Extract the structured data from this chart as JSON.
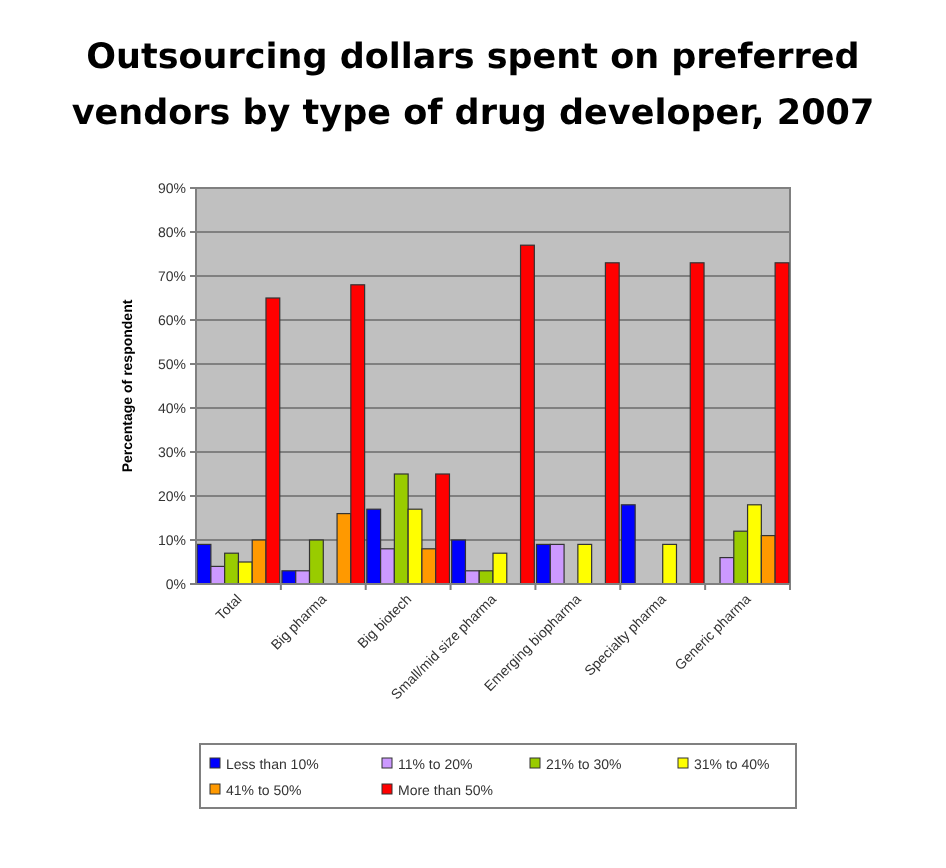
{
  "chart_data": {
    "type": "bar",
    "title": "Outsourcing dollars spent on preferred vendors by type of drug developer, 2007",
    "ylabel": "Percentage of respondent",
    "categories": [
      "Total",
      "Big pharma",
      "Big biotech",
      "Small/mid size pharma",
      "Emerging biopharma",
      "Specialty pharma",
      "Generic pharma"
    ],
    "series": [
      {
        "name": "Less than 10%",
        "color": "#0000ff",
        "values": [
          9,
          3,
          17,
          10,
          9,
          18,
          0
        ]
      },
      {
        "name": "11% to 20%",
        "color": "#cc99ff",
        "values": [
          4,
          3,
          8,
          3,
          9,
          0,
          6
        ]
      },
      {
        "name": "21% to 30%",
        "color": "#99cc00",
        "values": [
          7,
          10,
          25,
          3,
          0,
          0,
          12
        ]
      },
      {
        "name": "31% to 40%",
        "color": "#ffff00",
        "values": [
          5,
          0,
          17,
          7,
          9,
          9,
          18
        ]
      },
      {
        "name": "41% to 50%",
        "color": "#ff9900",
        "values": [
          10,
          16,
          8,
          0,
          0,
          0,
          11
        ]
      },
      {
        "name": "More than 50%",
        "color": "#ff0000",
        "values": [
          65,
          68,
          25,
          77,
          73,
          73,
          73
        ]
      }
    ],
    "ylim": [
      0,
      90
    ],
    "yticks": [
      {
        "value": 0,
        "label": "0%"
      },
      {
        "value": 10,
        "label": "10%"
      },
      {
        "value": 20,
        "label": "20%"
      },
      {
        "value": 30,
        "label": "30%"
      },
      {
        "value": 40,
        "label": "40%"
      },
      {
        "value": 50,
        "label": "50%"
      },
      {
        "value": 60,
        "label": "60%"
      },
      {
        "value": 70,
        "label": "70%"
      },
      {
        "value": 80,
        "label": "80%"
      },
      {
        "value": 90,
        "label": "90%"
      }
    ],
    "grid": "y",
    "legend": "bottom"
  }
}
